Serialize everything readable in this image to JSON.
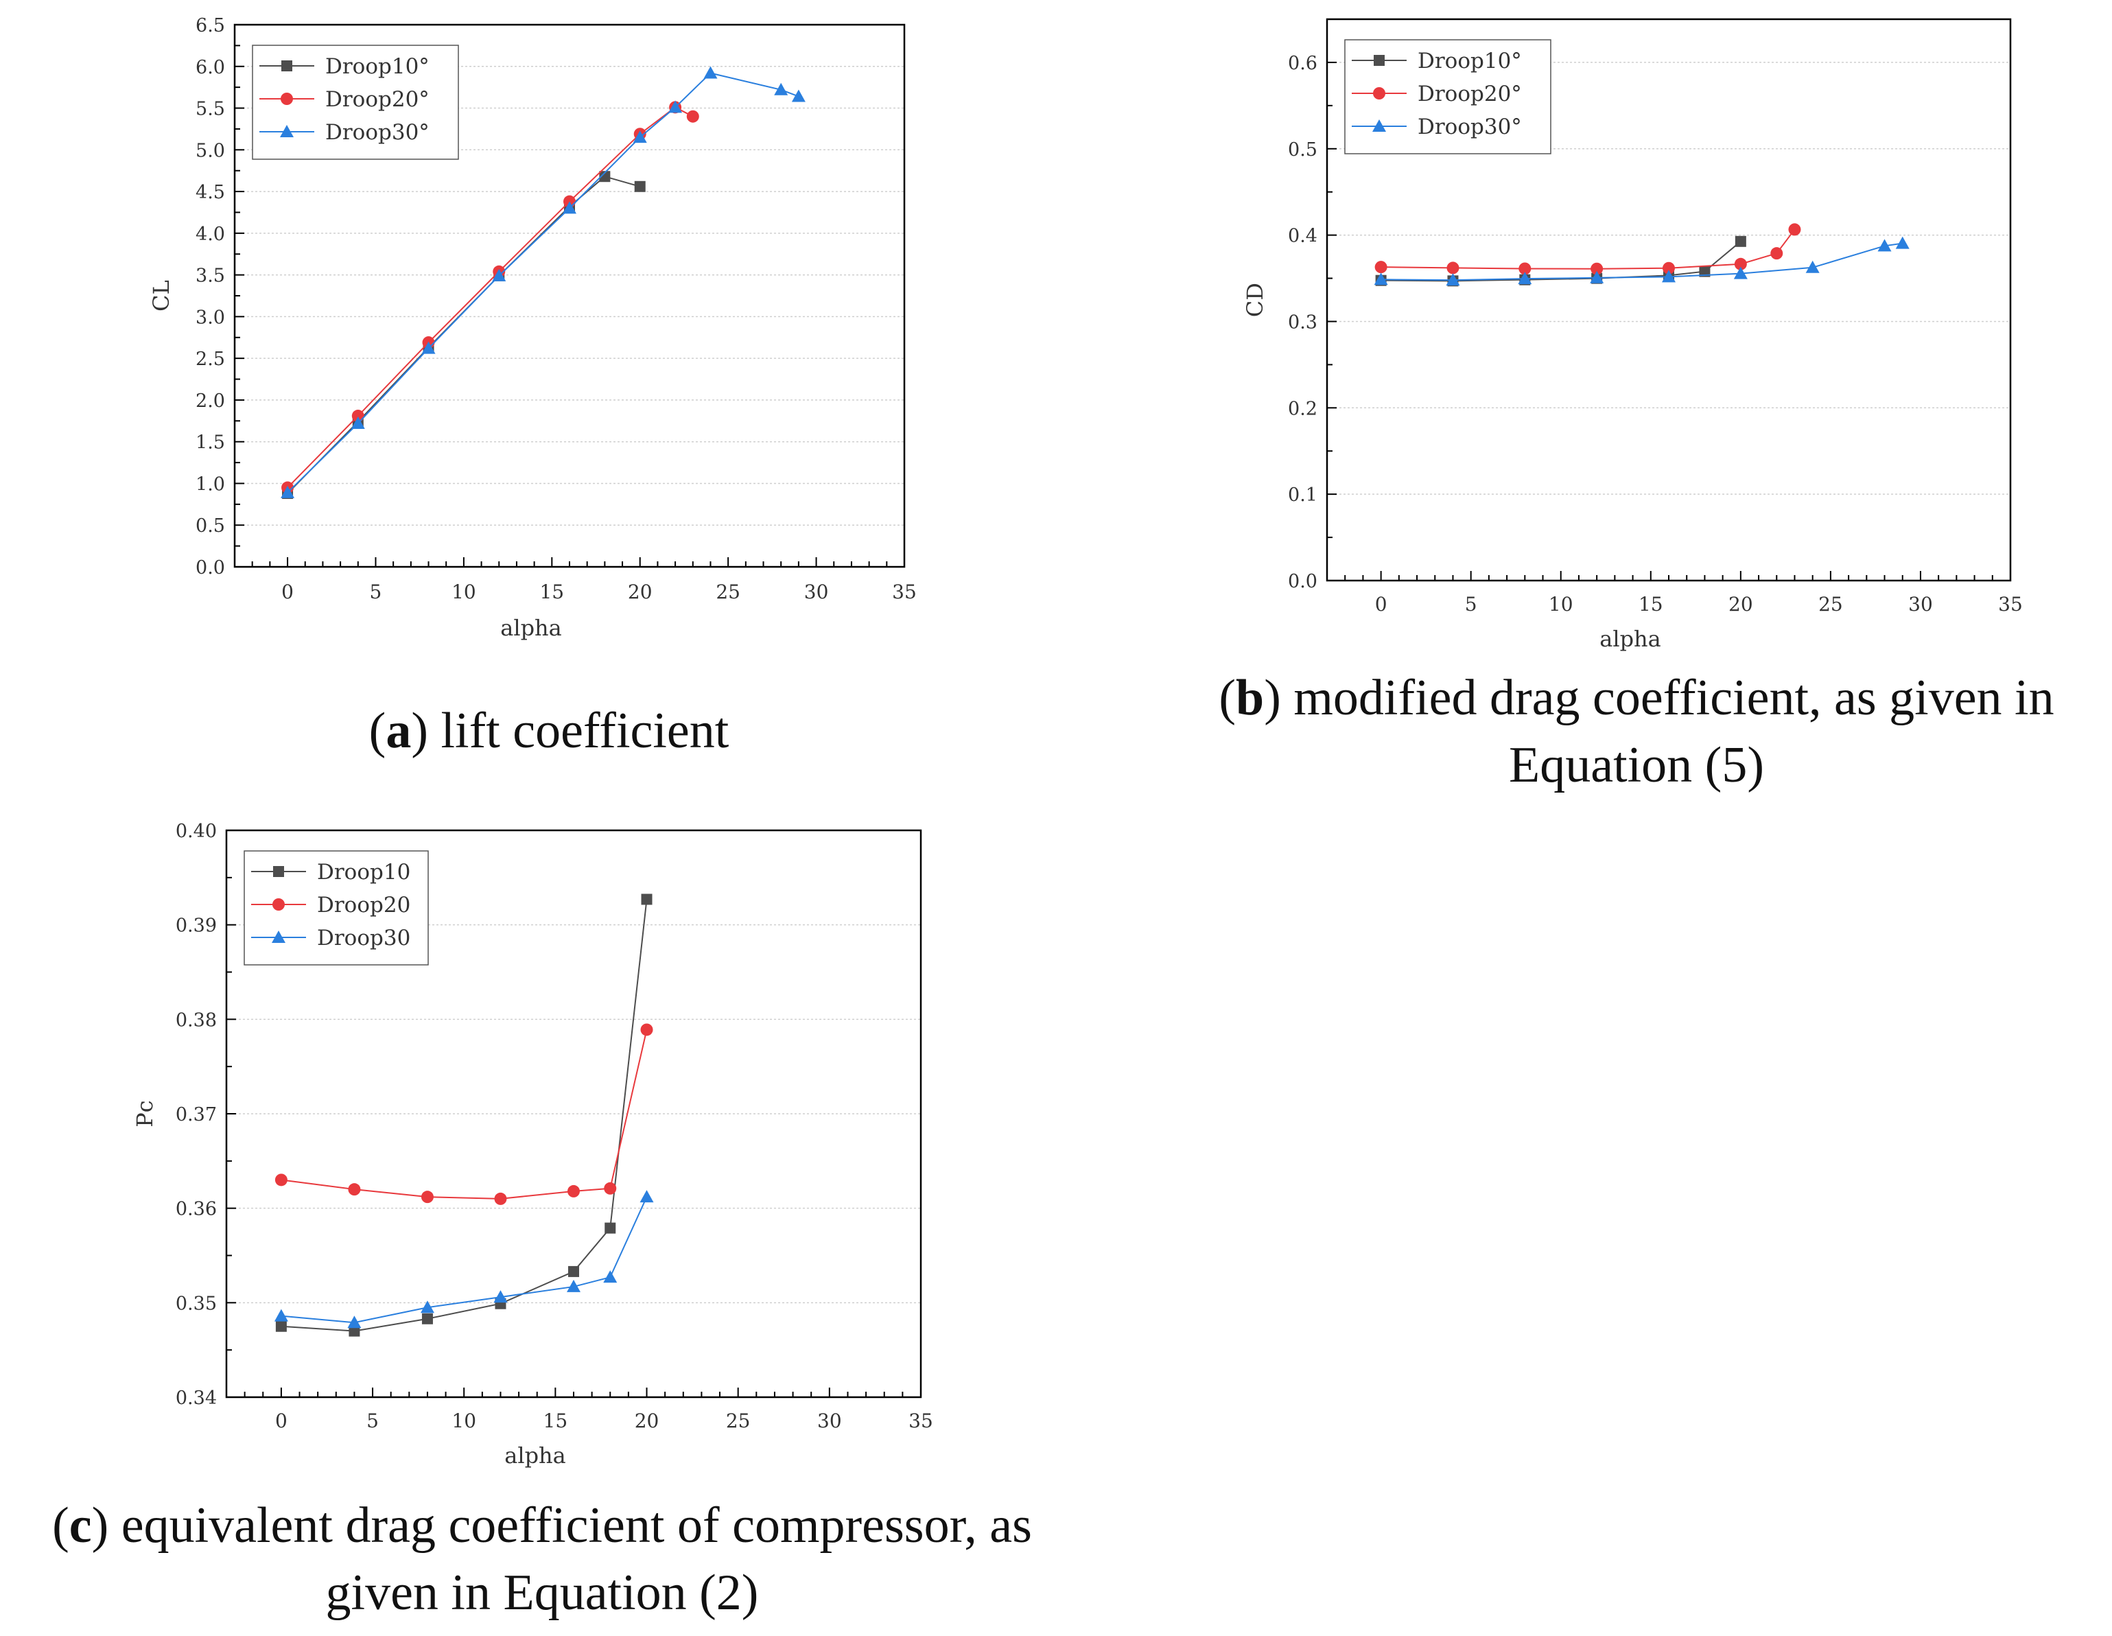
{
  "colors": {
    "droop10": "#4d4d4d",
    "droop20": "#e8393d",
    "droop30": "#2a7fde",
    "grid": "#cfcfcf",
    "axis": "#000000"
  },
  "captions": {
    "a": {
      "letter": "a",
      "text": "lift coefficient"
    },
    "b": {
      "letter": "b",
      "text_line1": "modified drag coefficient, as given in",
      "text_line2": "Equation (5)"
    },
    "c": {
      "letter": "c",
      "text_line1": "equivalent drag coefficient of compressor, as",
      "text_line2": "given in Equation (2)"
    }
  },
  "chart_data": [
    {
      "id": "a",
      "type": "line",
      "title": "",
      "xlabel": "alpha",
      "ylabel": "CL",
      "xlim": [
        -3,
        35
      ],
      "ylim": [
        0,
        6.5
      ],
      "xticks": [
        0,
        5,
        10,
        15,
        20,
        25,
        30,
        35
      ],
      "xtick_labels": [
        "0",
        "5",
        "10",
        "15",
        "20",
        "25",
        "30",
        "35"
      ],
      "yticks": [
        0,
        0.5,
        1,
        1.5,
        2,
        2.5,
        3,
        3.5,
        4,
        4.5,
        5,
        5.5,
        6,
        6.5
      ],
      "ytick_labels": [
        "0.0",
        "0.5",
        "1.0",
        "1.5",
        "2.0",
        "2.5",
        "3.0",
        "3.5",
        "4.0",
        "4.5",
        "5.0",
        "5.5",
        "6.0",
        "6.5"
      ],
      "grid": true,
      "legend": "top-left",
      "series": [
        {
          "name": "Droop10°",
          "marker": "square",
          "color": "#4d4d4d",
          "x": [
            0,
            4,
            8,
            12,
            16,
            18,
            20
          ],
          "y": [
            0.88,
            1.74,
            2.63,
            3.49,
            4.32,
            4.68,
            4.56
          ]
        },
        {
          "name": "Droop20°",
          "marker": "circle",
          "color": "#e8393d",
          "x": [
            0,
            4,
            8,
            12,
            16,
            20,
            22,
            23
          ],
          "y": [
            0.95,
            1.81,
            2.69,
            3.54,
            4.38,
            5.19,
            5.51,
            5.4
          ]
        },
        {
          "name": "Droop30°",
          "marker": "triangle",
          "color": "#2a7fde",
          "x": [
            0,
            4,
            8,
            12,
            16,
            20,
            22,
            24,
            28,
            29
          ],
          "y": [
            0.89,
            1.72,
            2.62,
            3.49,
            4.3,
            5.15,
            5.51,
            5.92,
            5.72,
            5.64
          ]
        }
      ]
    },
    {
      "id": "b",
      "type": "line",
      "title": "",
      "xlabel": "alpha",
      "ylabel": "CD",
      "xlim": [
        -3,
        35
      ],
      "ylim": [
        0,
        0.65
      ],
      "xticks": [
        0,
        5,
        10,
        15,
        20,
        25,
        30,
        35
      ],
      "xtick_labels": [
        "0",
        "5",
        "10",
        "15",
        "20",
        "25",
        "30",
        "35"
      ],
      "yticks": [
        0,
        0.1,
        0.2,
        0.3,
        0.4,
        0.5,
        0.6
      ],
      "ytick_labels": [
        "0.0",
        "0.1",
        "0.2",
        "0.3",
        "0.4",
        "0.5",
        "0.6"
      ],
      "grid": true,
      "legend": "top-left",
      "series": [
        {
          "name": "Droop10°",
          "marker": "square",
          "color": "#4d4d4d",
          "x": [
            0,
            4,
            8,
            12,
            16,
            18,
            20
          ],
          "y": [
            0.3475,
            0.347,
            0.3483,
            0.3499,
            0.3533,
            0.3579,
            0.3927
          ]
        },
        {
          "name": "Droop20°",
          "marker": "circle",
          "color": "#e8393d",
          "x": [
            0,
            4,
            8,
            12,
            16,
            20,
            22,
            23
          ],
          "y": [
            0.363,
            0.362,
            0.3612,
            0.361,
            0.3618,
            0.3665,
            0.3789,
            0.4065
          ]
        },
        {
          "name": "Droop30°",
          "marker": "triangle",
          "color": "#2a7fde",
          "x": [
            0,
            4,
            8,
            12,
            16,
            20,
            24,
            28,
            29
          ],
          "y": [
            0.3486,
            0.3479,
            0.3495,
            0.3506,
            0.3517,
            0.3555,
            0.3625,
            0.3875,
            0.3905
          ]
        }
      ]
    },
    {
      "id": "c",
      "type": "line",
      "title": "",
      "xlabel": "alpha",
      "ylabel": "Pc",
      "xlim": [
        -3,
        35
      ],
      "ylim": [
        0.34,
        0.4
      ],
      "xticks": [
        0,
        5,
        10,
        15,
        20,
        25,
        30,
        35
      ],
      "xtick_labels": [
        "0",
        "5",
        "10",
        "15",
        "20",
        "25",
        "30",
        "35"
      ],
      "yticks": [
        0.34,
        0.35,
        0.36,
        0.37,
        0.38,
        0.39,
        0.4
      ],
      "ytick_labels": [
        "0.34",
        "0.35",
        "0.36",
        "0.37",
        "0.38",
        "0.39",
        "0.40"
      ],
      "grid": true,
      "legend": "top-left",
      "series": [
        {
          "name": "Droop10",
          "marker": "square",
          "color": "#4d4d4d",
          "x": [
            0,
            4,
            8,
            12,
            16,
            18,
            20
          ],
          "y": [
            0.3475,
            0.347,
            0.3483,
            0.3499,
            0.3533,
            0.3579,
            0.3927
          ]
        },
        {
          "name": "Droop20",
          "marker": "circle",
          "color": "#e8393d",
          "x": [
            0,
            4,
            8,
            12,
            16,
            18,
            20
          ],
          "y": [
            0.363,
            0.362,
            0.3612,
            0.361,
            0.3618,
            0.3621,
            0.3789
          ]
        },
        {
          "name": "Droop30",
          "marker": "triangle",
          "color": "#2a7fde",
          "x": [
            0,
            4,
            8,
            12,
            16,
            18,
            20
          ],
          "y": [
            0.3486,
            0.3479,
            0.3495,
            0.3506,
            0.3517,
            0.3527,
            0.3612
          ]
        }
      ]
    }
  ]
}
